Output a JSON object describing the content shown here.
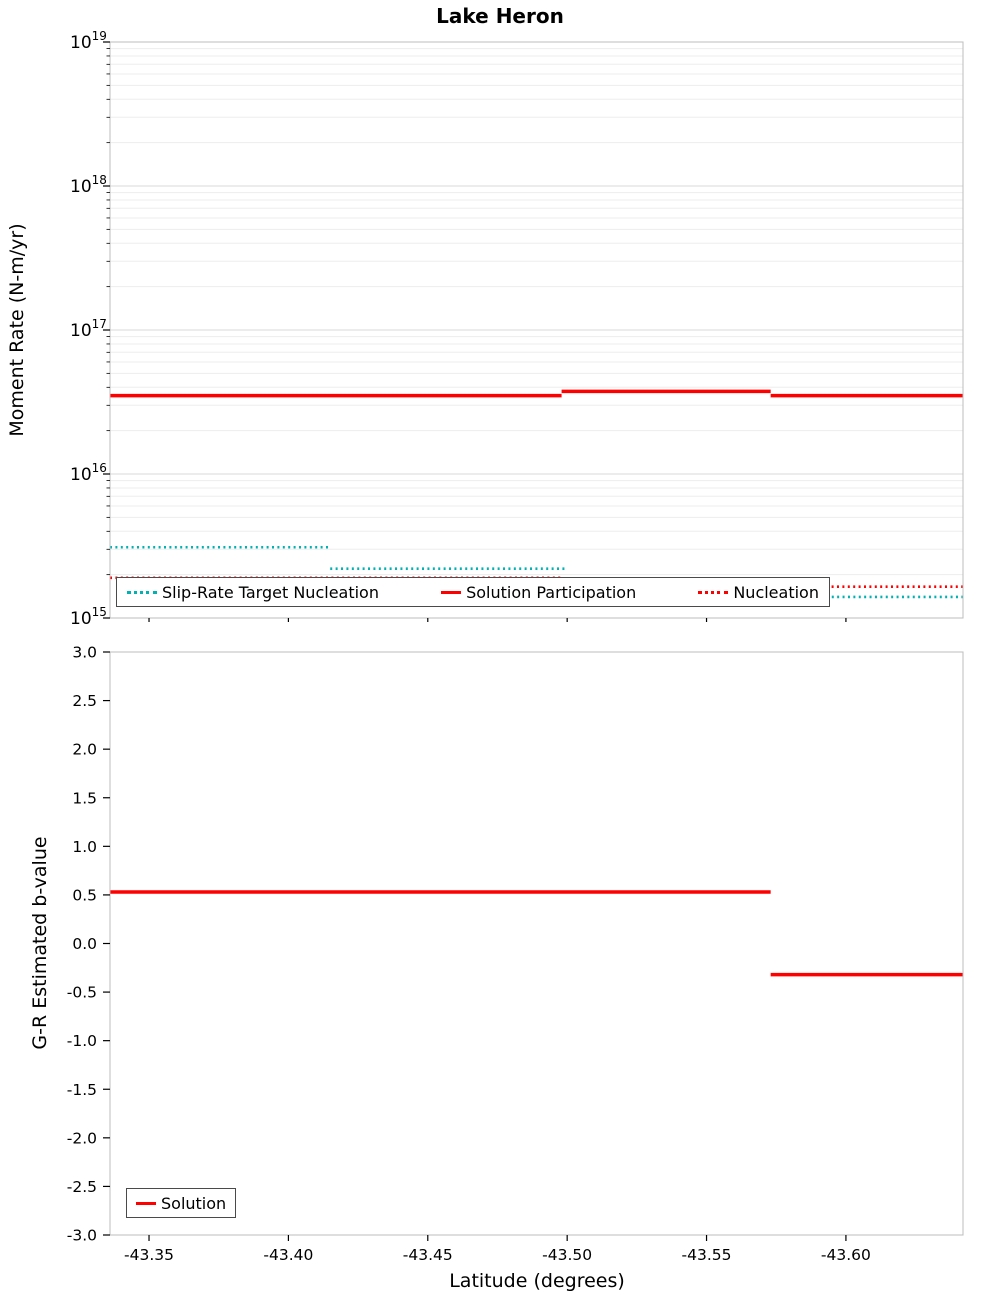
{
  "title": "Lake Heron",
  "colors": {
    "red": "#ff0000",
    "teal": "#00b2b2",
    "grid_major": "#d8d8d8",
    "grid_minor": "#ededed",
    "axis": "#bdbdbd",
    "text": "#000000"
  },
  "x_axis": {
    "label": "Latitude (degrees)",
    "min": -43.336,
    "max": -43.642,
    "reversed": true,
    "ticks": [
      -43.35,
      -43.4,
      -43.45,
      -43.5,
      -43.55,
      -43.6
    ],
    "tick_labels": [
      "-43.35",
      "-43.40",
      "-43.45",
      "-43.50",
      "-43.55",
      "-43.60"
    ]
  },
  "top_plot": {
    "y_label": "Moment Rate (N-m/yr)",
    "y_scale": "log",
    "y_ticks": {
      "base": "10",
      "exponents": [
        15,
        16,
        17,
        18,
        19
      ]
    }
  },
  "bottom_plot": {
    "y_label": "G-R Estimated b-value",
    "y_min": -3.0,
    "y_max": 3.0,
    "y_tick_labels": [
      "3.0",
      "2.5",
      "2.0",
      "1.5",
      "1.0",
      "0.5",
      "0.0",
      "-0.5",
      "-1.0",
      "-1.5",
      "-2.0",
      "-2.5",
      "-3.0"
    ]
  },
  "chart_data": [
    {
      "type": "line",
      "title": "Lake Heron",
      "xlabel": "Latitude (degrees)",
      "ylabel": "Moment Rate (N-m/yr)",
      "yscale": "log",
      "ylim": [
        1000000000000000.0,
        1e+19
      ],
      "xlim": [
        -43.336,
        -43.642
      ],
      "x_reversed": true,
      "grid": "horizontal-log",
      "legend_position": "bottom-inside-horizontal",
      "series": [
        {
          "name": "Slip-Rate Target Nucleation",
          "style": "dotted",
          "color": "#00b2b2",
          "steps": [
            {
              "x_start": -43.336,
              "x_end": -43.415,
              "y": 3100000000000000.0
            },
            {
              "x_start": -43.415,
              "x_end": -43.5,
              "y": 2200000000000000.0
            },
            {
              "x_start": -43.5,
              "x_end": -43.642,
              "y": 1400000000000000.0
            }
          ]
        },
        {
          "name": "Solution Participation",
          "style": "solid",
          "color": "#ff0000",
          "steps": [
            {
              "x_start": -43.336,
              "x_end": -43.498,
              "y": 3.5e+16
            },
            {
              "x_start": -43.498,
              "x_end": -43.573,
              "y": 3.75e+16
            },
            {
              "x_start": -43.573,
              "x_end": -43.642,
              "y": 3.5e+16
            }
          ]
        },
        {
          "name": "Nucleation",
          "style": "dotted",
          "color": "#ff0000",
          "steps": [
            {
              "x_start": -43.336,
              "x_end": -43.498,
              "y": 1900000000000000.0
            },
            {
              "x_start": -43.498,
              "x_end": -43.642,
              "y": 1650000000000000.0
            }
          ]
        }
      ]
    },
    {
      "type": "line",
      "xlabel": "Latitude (degrees)",
      "ylabel": "G-R Estimated b-value",
      "ylim": [
        -3.0,
        3.0
      ],
      "xlim": [
        -43.336,
        -43.642
      ],
      "x_reversed": true,
      "grid": "off",
      "legend_position": "bottom-left-inside",
      "series": [
        {
          "name": "Solution",
          "style": "solid",
          "color": "#ff0000",
          "steps": [
            {
              "x_start": -43.336,
              "x_end": -43.573,
              "y": 0.53
            },
            {
              "x_start": -43.573,
              "x_end": -43.642,
              "y": -0.32
            }
          ]
        }
      ]
    }
  ]
}
